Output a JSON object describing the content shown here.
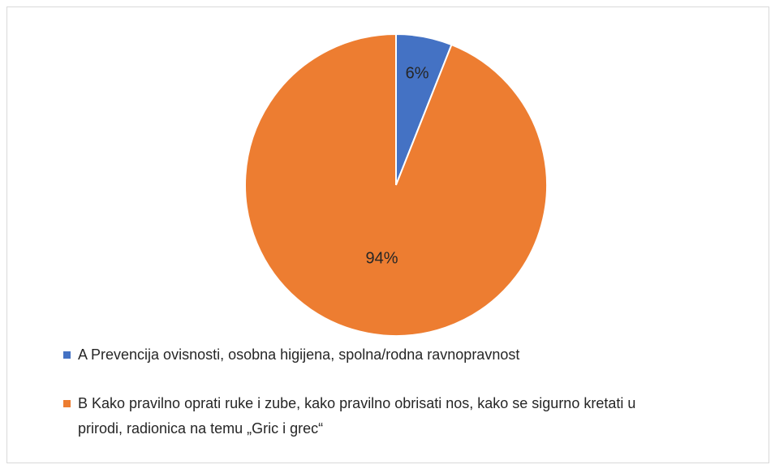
{
  "chart_data": {
    "type": "pie",
    "categories": [
      "A Prevencija ovisnosti, osobna higijena, spolna/rodna ravnopravnost",
      "B Kako pravilno oprati ruke i zube, kako pravilno obrisati nos, kako se sigurno kretati u prirodi, radionica na temu „Gric i grec“"
    ],
    "values": [
      6,
      94
    ],
    "value_labels": [
      "6%",
      "94%"
    ],
    "colors": [
      "#4472c4",
      "#ed7d31"
    ]
  }
}
